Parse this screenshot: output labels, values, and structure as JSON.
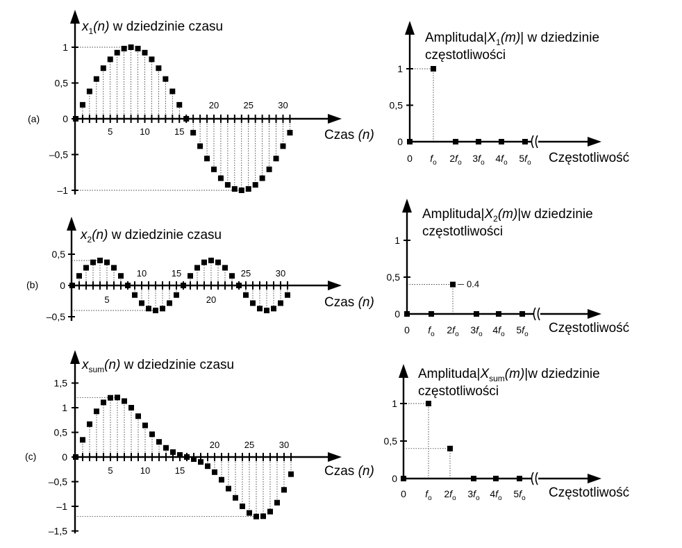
{
  "chart_data": [
    {
      "id": "a-time",
      "type": "scatter",
      "panel_label": "(a)",
      "title_var": "x",
      "title_sub": "1",
      "title_arg": "(n)",
      "title_rest": "  w  dziedzinie czasu",
      "xlabel_text": "Czas ",
      "xlabel_var": "(n)",
      "x": [
        0,
        1,
        2,
        3,
        4,
        5,
        6,
        7,
        8,
        9,
        10,
        11,
        12,
        13,
        14,
        15,
        16,
        17,
        18,
        19,
        20,
        21,
        22,
        23,
        24,
        25,
        26,
        27,
        28,
        29,
        30,
        31
      ],
      "y": [
        0,
        0.195,
        0.383,
        0.556,
        0.707,
        0.831,
        0.924,
        0.981,
        1,
        0.981,
        0.924,
        0.831,
        0.707,
        0.556,
        0.383,
        0.195,
        0,
        -0.195,
        -0.383,
        -0.556,
        -0.707,
        -0.831,
        -0.924,
        -0.981,
        -1,
        -0.981,
        -0.924,
        -0.831,
        -0.707,
        -0.556,
        -0.383,
        -0.195
      ],
      "xticks_below": [
        5,
        10,
        15
      ],
      "xticks_above": [
        20,
        25,
        30
      ],
      "yticks": [
        -1,
        -0.5,
        0,
        0.5,
        1
      ],
      "ytick_labels": [
        "–1",
        "–0,5",
        "0",
        "0,5",
        "1"
      ],
      "ylim": [
        -1,
        1
      ],
      "xlim": [
        0,
        34
      ]
    },
    {
      "id": "a-freq",
      "type": "bar",
      "title_pre": "Amplituda|",
      "title_var": "X",
      "title_sub": "1",
      "title_arg": "(m)",
      "title_rest": "| w dziedzinie",
      "title_line2": "częstotliwości",
      "xlabel": "Częstotliwość",
      "categories": [
        "0",
        "f",
        "2f",
        "3f",
        "4f",
        "5f"
      ],
      "values": [
        0,
        1,
        0,
        0,
        0,
        0
      ],
      "yticks": [
        0,
        0.5,
        1
      ],
      "ytick_labels": [
        "0",
        "0,5",
        "1"
      ],
      "ylim": [
        0,
        1
      ]
    },
    {
      "id": "b-time",
      "type": "scatter",
      "panel_label": "(b)",
      "title_var": "x",
      "title_sub": "2",
      "title_arg": "(n)",
      "title_rest": " w dziedzinie czasu",
      "xlabel_text": "Czas ",
      "xlabel_var": "(n)",
      "x": [
        0,
        1,
        2,
        3,
        4,
        5,
        6,
        7,
        8,
        9,
        10,
        11,
        12,
        13,
        14,
        15,
        16,
        17,
        18,
        19,
        20,
        21,
        22,
        23,
        24,
        25,
        26,
        27,
        28,
        29,
        30,
        31
      ],
      "y": [
        0,
        0.153,
        0.283,
        0.37,
        0.4,
        0.37,
        0.283,
        0.153,
        0,
        -0.153,
        -0.283,
        -0.37,
        -0.4,
        -0.37,
        -0.283,
        -0.153,
        0,
        0.153,
        0.283,
        0.37,
        0.4,
        0.37,
        0.283,
        0.153,
        0,
        -0.153,
        -0.283,
        -0.37,
        -0.4,
        -0.37,
        -0.283,
        -0.153
      ],
      "xticks_below": [
        5,
        20
      ],
      "xticks_above": [
        10,
        15,
        25,
        30
      ],
      "yticks": [
        -0.5,
        0,
        0.5
      ],
      "ytick_labels": [
        "–0,5",
        "0",
        "0,5"
      ],
      "ylim": [
        -0.5,
        0.5
      ],
      "xlim": [
        0,
        34
      ]
    },
    {
      "id": "b-freq",
      "type": "bar",
      "title_pre": "Amplituda|",
      "title_var": "X",
      "title_sub": "2",
      "title_arg": "(m)",
      "title_rest": "|w dziedzinie",
      "title_line2": "częstotliwości",
      "xlabel": "Częstotliwość",
      "categories": [
        "0",
        "f",
        "2f",
        "3f",
        "4f",
        "5f"
      ],
      "values": [
        0,
        0,
        0.4,
        0,
        0,
        0
      ],
      "data_label": "0.4",
      "yticks": [
        0,
        0.5,
        1
      ],
      "ytick_labels": [
        "0",
        "0,5",
        "1"
      ],
      "ylim": [
        0,
        1
      ]
    },
    {
      "id": "c-time",
      "type": "scatter",
      "panel_label": "(c)",
      "title_var": "x",
      "title_sub": "sum",
      "title_arg": "(n)",
      "title_rest": " w dziedzinie czasu",
      "xlabel_text": "Czas ",
      "xlabel_var": "(n)",
      "x": [
        0,
        1,
        2,
        3,
        4,
        5,
        6,
        7,
        8,
        9,
        10,
        11,
        12,
        13,
        14,
        15,
        16,
        17,
        18,
        19,
        20,
        21,
        22,
        23,
        24,
        25,
        26,
        27,
        28,
        29,
        30,
        31
      ],
      "y": [
        0,
        0.348,
        0.666,
        0.926,
        1.107,
        1.201,
        1.207,
        1.134,
        1,
        0.828,
        0.641,
        0.461,
        0.307,
        0.186,
        0.1,
        0.042,
        0,
        -0.042,
        -0.1,
        -0.186,
        -0.307,
        -0.461,
        -0.641,
        -0.828,
        -1,
        -1.134,
        -1.207,
        -1.201,
        -1.107,
        -0.926,
        -0.666,
        -0.348
      ],
      "xticks_below": [
        5,
        10,
        15
      ],
      "xticks_above": [
        20,
        25,
        30
      ],
      "yticks": [
        -1.5,
        -1,
        -0.5,
        0,
        0.5,
        1,
        1.5
      ],
      "ytick_labels": [
        "–1,5",
        "–1",
        "–0,5",
        "0",
        "0,5",
        "1",
        "1,5"
      ],
      "ylim": [
        -1.5,
        1.5
      ],
      "xlim": [
        0,
        34
      ]
    },
    {
      "id": "c-freq",
      "type": "bar",
      "title_pre": "Amplituda|",
      "title_var": "X",
      "title_sub": "sum",
      "title_arg": "(m)",
      "title_rest": "|w dziedzinie",
      "title_line2": "częstotliwości",
      "xlabel": "Częstotliwość",
      "categories": [
        "0",
        "f",
        "2f",
        "3f",
        "4f",
        "5f"
      ],
      "values": [
        0,
        1,
        0.4,
        0,
        0,
        0
      ],
      "yticks": [
        0,
        0.5,
        1
      ],
      "ytick_labels": [
        "0",
        "0,5",
        "1"
      ],
      "ylim": [
        0,
        1
      ]
    }
  ],
  "freq_subscript": "o"
}
